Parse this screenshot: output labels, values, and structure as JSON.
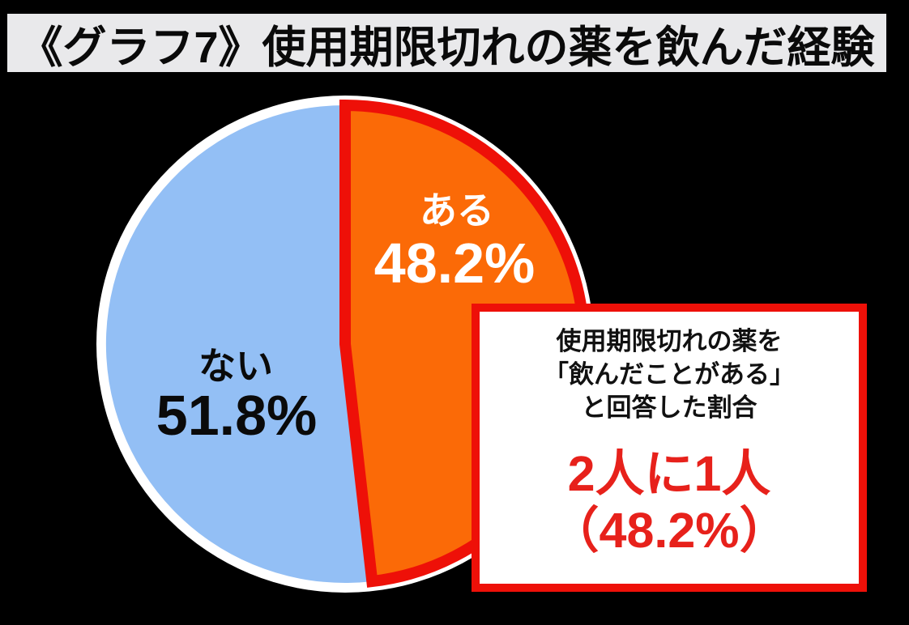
{
  "page": {
    "background": "#000000"
  },
  "header": {
    "title": "《グラフ7》使用期限切れの薬を飲んだ経験",
    "background": "#e9e9eb",
    "text_color": "#0a0a0a"
  },
  "chart_data": {
    "type": "pie",
    "title": "使用期限切れの薬を飲んだ経験",
    "categories": [
      "ある",
      "ない"
    ],
    "values": [
      48.2,
      51.8
    ],
    "unit": "%",
    "start_angle_deg": 0,
    "direction": "clockwise",
    "legend_position": "none",
    "outline_color": "#ffffff",
    "slices": [
      {
        "label": "ある",
        "value": 48.2,
        "display_value": "48.2%",
        "fill": "#fb6a07",
        "label_color": "#ffffff",
        "stroke": "#ee1008"
      },
      {
        "label": "ない",
        "value": 51.8,
        "display_value": "51.8%",
        "fill": "#93bff5",
        "label_color": "#0a0a0a"
      }
    ]
  },
  "callout": {
    "lines": [
      "使用期限切れの薬を",
      "「飲んだことがある」",
      "と回答した割合"
    ],
    "highlight_line1": "2人に1人",
    "highlight_line2": "（48.2%）",
    "border_color": "#ee1008",
    "highlight_color": "#e7211b",
    "background": "#ffffff"
  }
}
